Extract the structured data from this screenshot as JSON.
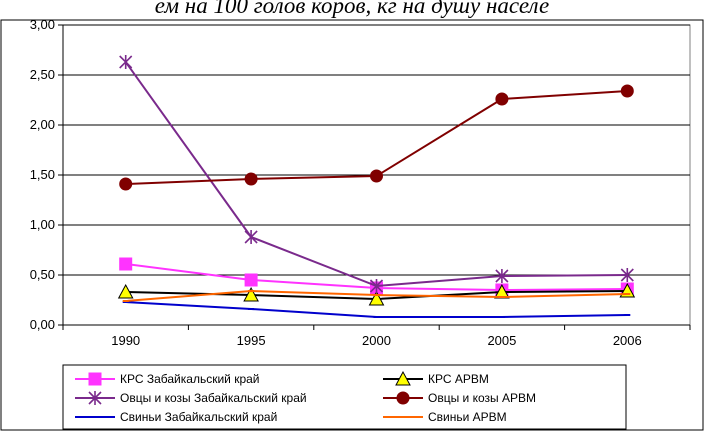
{
  "banner": "ем на 100 голов коров, кг на душу населе",
  "chart_data": {
    "type": "line",
    "categories": [
      "1990",
      "1995",
      "2000",
      "2005",
      "2006"
    ],
    "y_ticks": [
      "0,00",
      "0,50",
      "1,00",
      "1,50",
      "2,00",
      "2,50",
      "3,00"
    ],
    "ylim": [
      0,
      3
    ],
    "grid": true,
    "legend_position": "bottom",
    "series": [
      {
        "name": "КРС Забайкальский край",
        "values": [
          0.61,
          0.45,
          0.37,
          0.35,
          0.36
        ],
        "color": "#ff33ff",
        "marker": "square"
      },
      {
        "name": "КРС АРВМ",
        "values": [
          0.33,
          0.3,
          0.26,
          0.33,
          0.34
        ],
        "color": "#000000",
        "marker": "triangle"
      },
      {
        "name": "Овцы и козы Забайкальский край",
        "values": [
          2.63,
          0.88,
          0.39,
          0.49,
          0.5
        ],
        "color": "#7a2a8c",
        "marker": "star"
      },
      {
        "name": "Овцы и козы АРВМ",
        "values": [
          1.41,
          1.46,
          1.49,
          2.26,
          2.34
        ],
        "color": "#800000",
        "marker": "circle"
      },
      {
        "name": "Свиньи Забайкальский край",
        "values": [
          0.23,
          0.16,
          0.08,
          0.08,
          0.1
        ],
        "color": "#0000cc",
        "marker": "dash"
      },
      {
        "name": "Свиньи АРВМ",
        "values": [
          0.24,
          0.34,
          0.3,
          0.28,
          0.31
        ],
        "color": "#ff6600",
        "marker": "dash"
      }
    ]
  }
}
